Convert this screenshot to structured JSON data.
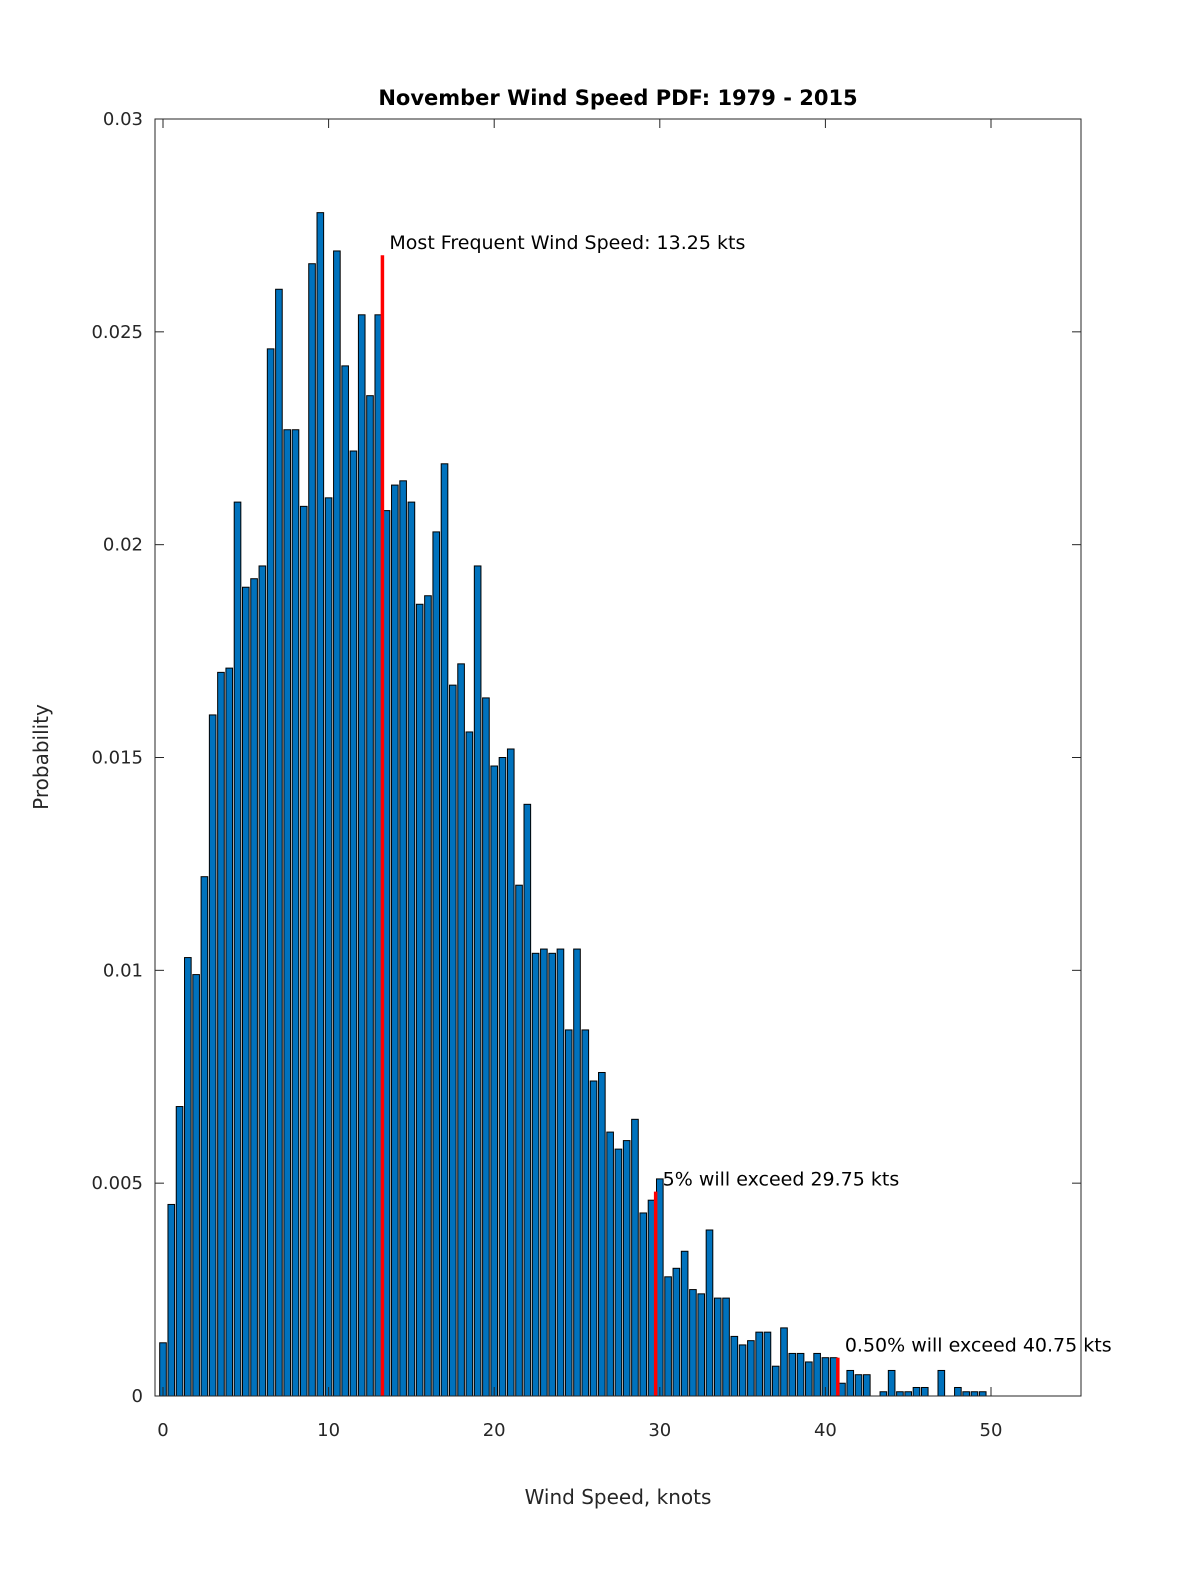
{
  "chart_data": {
    "type": "bar",
    "title": "November Wind Speed PDF: 1979 - 2015",
    "xlabel": "Wind Speed, knots",
    "ylabel": "Probability",
    "xlim": [
      -0.5,
      55.5
    ],
    "ylim": [
      0,
      0.03
    ],
    "xticks": [
      0,
      10,
      20,
      30,
      40,
      50
    ],
    "xtick_labels": [
      "0",
      "10",
      "20",
      "30",
      "40",
      "50"
    ],
    "yticks": [
      0,
      0.005,
      0.01,
      0.015,
      0.02,
      0.025,
      0.03
    ],
    "ytick_labels": [
      "0",
      "0.005",
      "0.01",
      "0.015",
      "0.02",
      "0.025",
      "0.03"
    ],
    "grid": false,
    "bar_color": "#0072BD",
    "bar_edge_color": "#000000",
    "x": [
      0,
      0.5,
      1,
      1.5,
      2,
      2.5,
      3,
      3.5,
      4,
      4.5,
      5,
      5.5,
      6,
      6.5,
      7,
      7.5,
      8,
      8.5,
      9,
      9.5,
      10,
      10.5,
      11,
      11.5,
      12,
      12.5,
      13,
      13.5,
      14,
      14.5,
      15,
      15.5,
      16,
      16.5,
      17,
      17.5,
      18,
      18.5,
      19,
      19.5,
      20,
      20.5,
      21,
      21.5,
      22,
      22.5,
      23,
      23.5,
      24,
      24.5,
      25,
      25.5,
      26,
      26.5,
      27,
      27.5,
      28,
      28.5,
      29,
      29.5,
      30,
      30.5,
      31,
      31.5,
      32,
      32.5,
      33,
      33.5,
      34,
      34.5,
      35,
      35.5,
      36,
      36.5,
      37,
      37.5,
      38,
      38.5,
      39,
      39.5,
      40,
      40.5,
      41,
      41.5,
      42,
      42.5,
      43,
      43.5,
      44,
      44.5,
      45,
      45.5,
      46,
      46.5,
      47,
      47.5,
      48,
      48.5,
      49,
      49.5
    ],
    "values": [
      0.00125,
      0.0045,
      0.0068,
      0.0103,
      0.0099,
      0.0122,
      0.016,
      0.017,
      0.0171,
      0.021,
      0.019,
      0.0192,
      0.0195,
      0.0246,
      0.026,
      0.0227,
      0.0227,
      0.0209,
      0.0266,
      0.0278,
      0.0211,
      0.0269,
      0.0242,
      0.0222,
      0.0254,
      0.0235,
      0.0254,
      0.0208,
      0.0214,
      0.0215,
      0.021,
      0.0186,
      0.0188,
      0.0203,
      0.0219,
      0.0167,
      0.0172,
      0.0156,
      0.0195,
      0.0164,
      0.0148,
      0.015,
      0.0152,
      0.012,
      0.0139,
      0.0104,
      0.0105,
      0.0104,
      0.0105,
      0.0086,
      0.0105,
      0.0086,
      0.0074,
      0.0076,
      0.0062,
      0.0058,
      0.006,
      0.0065,
      0.0043,
      0.0046,
      0.0051,
      0.0028,
      0.003,
      0.0034,
      0.0025,
      0.0024,
      0.0039,
      0.0023,
      0.0023,
      0.0014,
      0.0012,
      0.0013,
      0.0015,
      0.0015,
      0.0007,
      0.0016,
      0.001,
      0.001,
      0.0008,
      0.001,
      0.0009,
      0.0009,
      0.0003,
      0.0006,
      0.0005,
      0.0005,
      0,
      0.0001,
      0.0006,
      0.0001,
      0.0001,
      0.0002,
      0.0002,
      0,
      0.0006,
      0,
      0.0002,
      0.0001,
      0.0001,
      0.0001
    ],
    "markers": [
      {
        "name": "mode",
        "x": 13.25,
        "y_top": 0.0268,
        "color": "#FF0000",
        "label": "Most Frequent Wind Speed: 13.25 kts"
      },
      {
        "name": "p95",
        "x": 29.75,
        "y_top": 0.0048,
        "color": "#FF0000",
        "label": "5% will exceed 29.75 kts"
      },
      {
        "name": "p995",
        "x": 40.75,
        "y_top": 0.0009,
        "color": "#FF0000",
        "label": "0.50% will exceed 40.75 kts"
      }
    ]
  }
}
